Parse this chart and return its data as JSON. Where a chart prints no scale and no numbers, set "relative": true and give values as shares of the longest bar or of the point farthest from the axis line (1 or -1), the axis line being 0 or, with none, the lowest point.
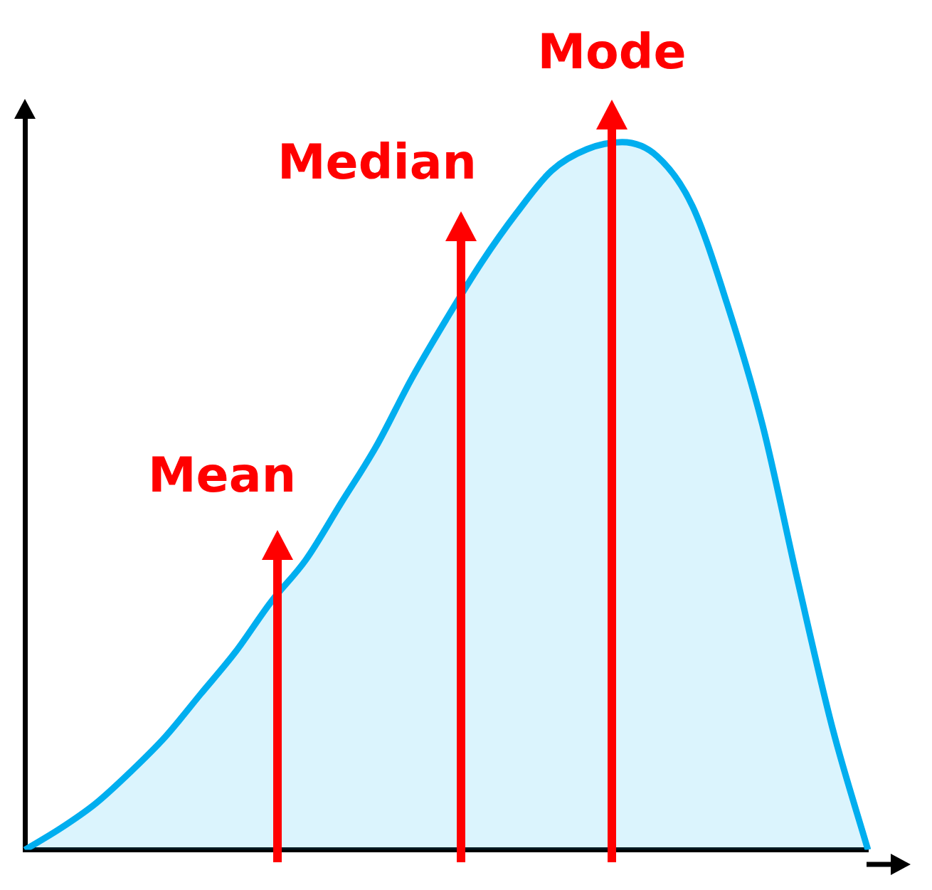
{
  "chart_data": {
    "type": "area",
    "relative": true,
    "grid": false,
    "legend": false,
    "categories": [
      null,
      null,
      null,
      null,
      null,
      null,
      null,
      null,
      null,
      null,
      null,
      null,
      null,
      null,
      null,
      null,
      null,
      null,
      null,
      null,
      null,
      null,
      null,
      null,
      null
    ],
    "series": [
      {
        "color": "#00aeef",
        "values": [
          0,
          0.03,
          0.065,
          0.11,
          0.16,
          0.22,
          0.28,
          0.35,
          0.41,
          0.49,
          0.57,
          0.665,
          0.75,
          0.83,
          0.9,
          0.96,
          0.99,
          1,
          0.98,
          0.91,
          0.77,
          0.6,
          0.38,
          0.17,
          0
        ]
      }
    ],
    "annotations": [
      "Mean",
      "Median",
      "Mode"
    ]
  }
}
